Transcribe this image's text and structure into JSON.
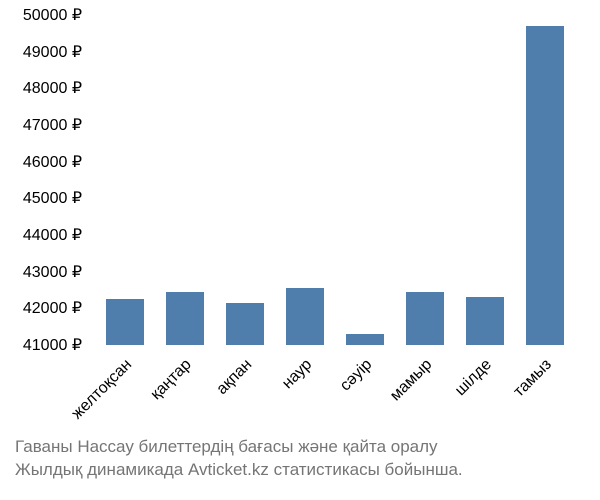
{
  "chart": {
    "type": "bar",
    "categories": [
      "желтоқсан",
      "қаңтар",
      "ақпан",
      "наур",
      "сәуір",
      "мамыр",
      "шілде",
      "тамыз"
    ],
    "values": [
      42250,
      42450,
      42150,
      42550,
      41300,
      42450,
      42300,
      49700
    ],
    "bar_color": "#4f7ead",
    "bar_width": 0.62,
    "background_color": "#ffffff",
    "ylim": [
      41000,
      50000
    ],
    "ytick_step": 1000,
    "ytick_labels": [
      "41000 ₽",
      "42000 ₽",
      "43000 ₽",
      "44000 ₽",
      "45000 ₽",
      "46000 ₽",
      "47000 ₽",
      "48000 ₽",
      "49000 ₽",
      "50000 ₽"
    ],
    "label_fontsize": 16,
    "xlabel_rotation": -45,
    "caption_line1": "Гаваны Нассау билеттердің бағасы және қайта оралу",
    "caption_line2": "Жылдық динамикада Avticket.kz статистикасы бойынша.",
    "caption_color": "#757575",
    "caption_fontsize": 17
  }
}
